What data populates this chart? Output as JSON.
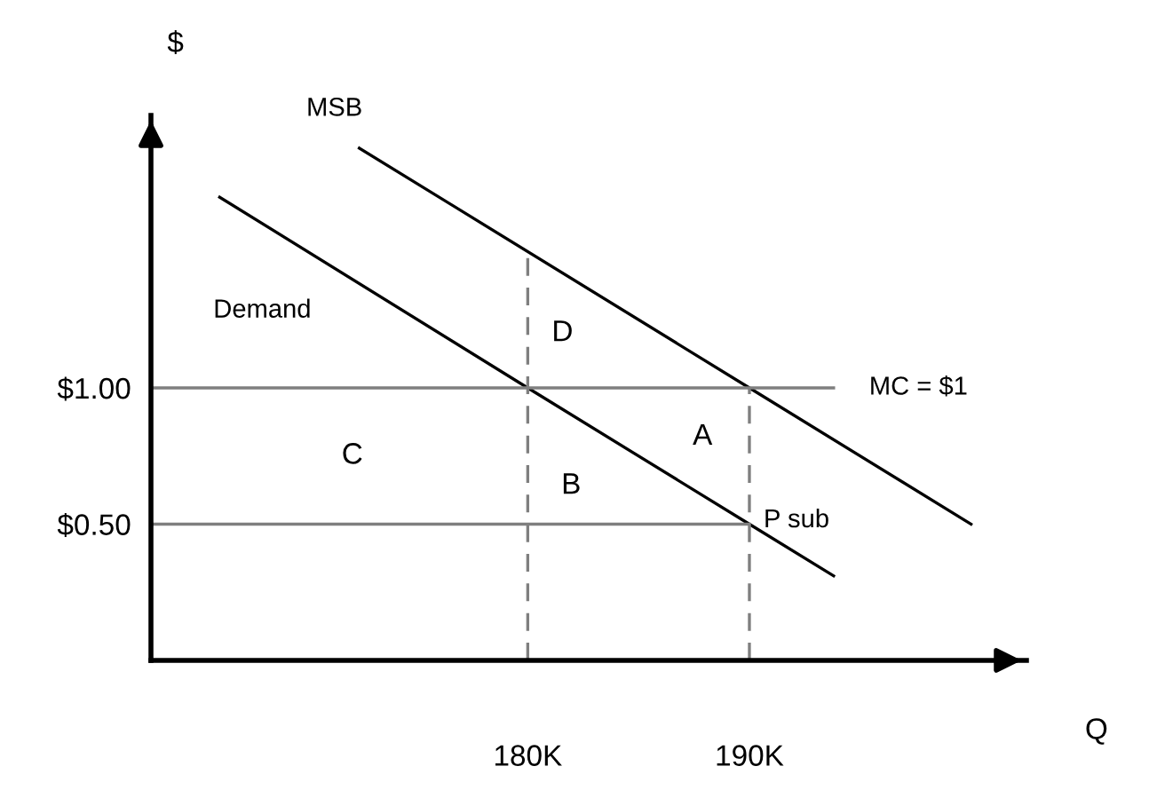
{
  "chart_data": {
    "type": "line",
    "xlabel": "Q",
    "ylabel": "$",
    "xlim": [
      163,
      202.5
    ],
    "ylim": [
      0,
      2
    ],
    "xticks": [
      {
        "value": 180,
        "label": "180K"
      },
      {
        "value": 190,
        "label": "190K"
      }
    ],
    "yticks": [
      {
        "value": 0.5,
        "label": "$0.50"
      },
      {
        "value": 1.0,
        "label": "$1.00"
      }
    ],
    "grid": false,
    "legend": false,
    "marker": "none",
    "series": [
      {
        "name": "Demand",
        "color": "#000000",
        "x": [
          166.1,
          180,
          190,
          193.8
        ],
        "values": [
          1.7,
          1.0,
          0.5,
          0.31
        ],
        "line_style": "solid"
      },
      {
        "name": "MSB",
        "color": "#000000",
        "x": [
          172.4,
          190,
          200
        ],
        "values": [
          1.88,
          1.0,
          0.5
        ],
        "line_style": "solid"
      },
      {
        "name": "MC = $1",
        "color": "#7f7f7f",
        "x": [
          163,
          193.8
        ],
        "values": [
          1.0,
          1.0
        ],
        "line_style": "solid"
      },
      {
        "name": "P sub",
        "color": "#7f7f7f",
        "x": [
          163,
          190
        ],
        "values": [
          0.5,
          0.5
        ],
        "line_style": "solid"
      },
      {
        "color": "#7f7f7f",
        "x": [
          180,
          180
        ],
        "values": [
          0,
          1.5
        ],
        "line_style": "dashed"
      },
      {
        "color": "#7f7f7f",
        "x": [
          190,
          190
        ],
        "values": [
          0,
          1.0
        ],
        "line_style": "dashed"
      }
    ],
    "annotations": [
      "D",
      "C",
      "A",
      "B"
    ]
  }
}
